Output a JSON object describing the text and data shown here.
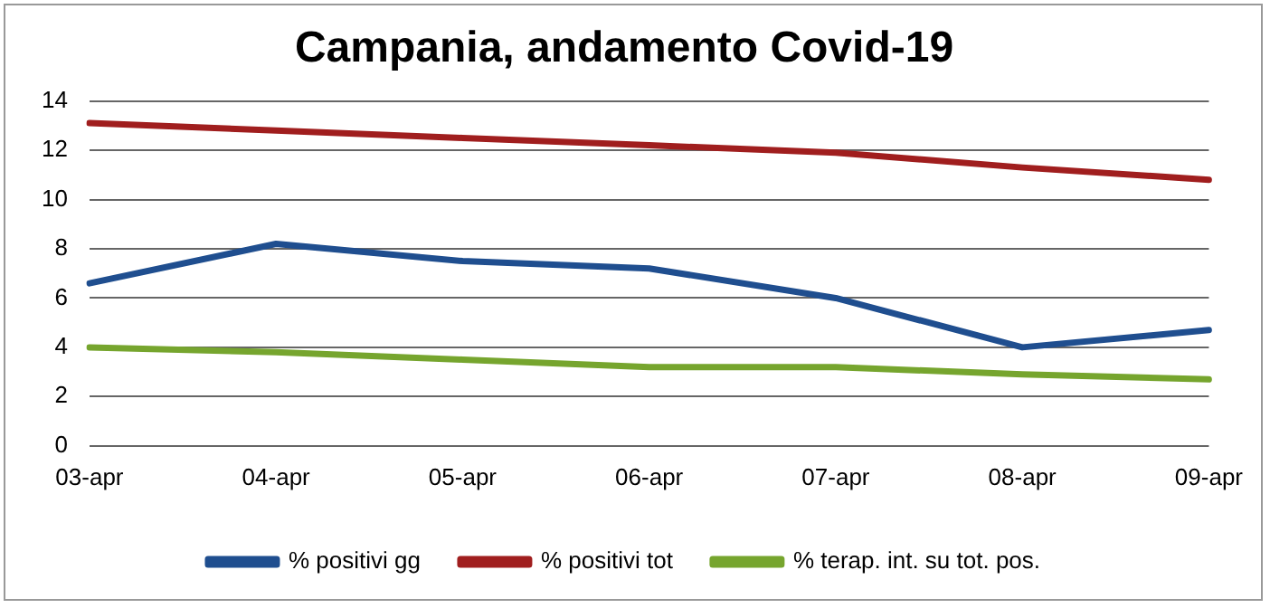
{
  "chart_data": {
    "type": "line",
    "title": "Campania, andamento Covid-19",
    "categories": [
      "03-apr",
      "04-apr",
      "05-apr",
      "06-apr",
      "07-apr",
      "08-apr",
      "09-apr"
    ],
    "series": [
      {
        "name": "% positivi gg",
        "color": "#1f4e8f",
        "values": [
          6.6,
          8.2,
          7.5,
          7.2,
          6.0,
          4.0,
          4.7
        ]
      },
      {
        "name": "% positivi tot",
        "color": "#a01e1e",
        "values": [
          13.1,
          12.8,
          12.5,
          12.2,
          11.9,
          11.3,
          10.8
        ]
      },
      {
        "name": "% terap. int. su tot. pos.",
        "color": "#76a52e",
        "values": [
          4.0,
          3.8,
          3.5,
          3.2,
          3.2,
          2.9,
          2.7
        ]
      }
    ],
    "ylim": [
      0,
      14
    ],
    "yticks": [
      0,
      2,
      4,
      6,
      8,
      10,
      12,
      14
    ],
    "grid": "y",
    "legend": "bottom",
    "marker": "none",
    "line_style": "solid"
  }
}
